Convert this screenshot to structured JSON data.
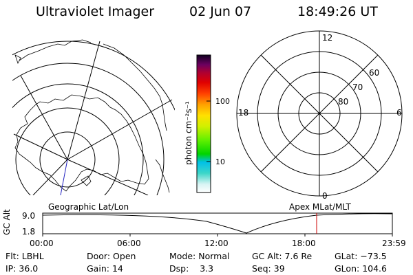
{
  "header": {
    "title": "Ultraviolet Imager",
    "date": "02 Jun 07",
    "time": "18:49:26 UT"
  },
  "geo_panel": {
    "label": "Geographic Lat/Lon"
  },
  "colorbar": {
    "unit_label": "photon cm⁻²s⁻¹",
    "ticks": [
      "100",
      "10"
    ]
  },
  "polar_panel": {
    "label": "Apex MLat/MLT",
    "mlt_labels": [
      "12",
      "18",
      "6",
      "0"
    ],
    "lat_labels": [
      "60",
      "70",
      "80"
    ]
  },
  "orbit_plot": {
    "axis_label": "GC Alt",
    "y_ticks": [
      "9.0",
      "1.8"
    ],
    "x_ticks": [
      "00:00",
      "06:00",
      "12:00",
      "18:00",
      "23:59"
    ],
    "current_time_marker_color": "#cc0000"
  },
  "info": {
    "filter": {
      "label": "Flt:",
      "value": "LBHL"
    },
    "ip": {
      "label": "IP:",
      "value": "36.0"
    },
    "door": {
      "label": "Door:",
      "value": "Open"
    },
    "gain": {
      "label": "Gain:",
      "value": "14"
    },
    "mode": {
      "label": "Mode:",
      "value": "Normal"
    },
    "dsp": {
      "label": "Dsp:",
      "value": "3.3"
    },
    "gc_alt": {
      "label": "GC Alt:",
      "value": "7.6 Re"
    },
    "seq": {
      "label": "Seq:",
      "value": "39"
    },
    "glat": {
      "label": "GLat:",
      "value": "−73.5"
    },
    "glon": {
      "label": "GLon:",
      "value": "104.6"
    }
  }
}
